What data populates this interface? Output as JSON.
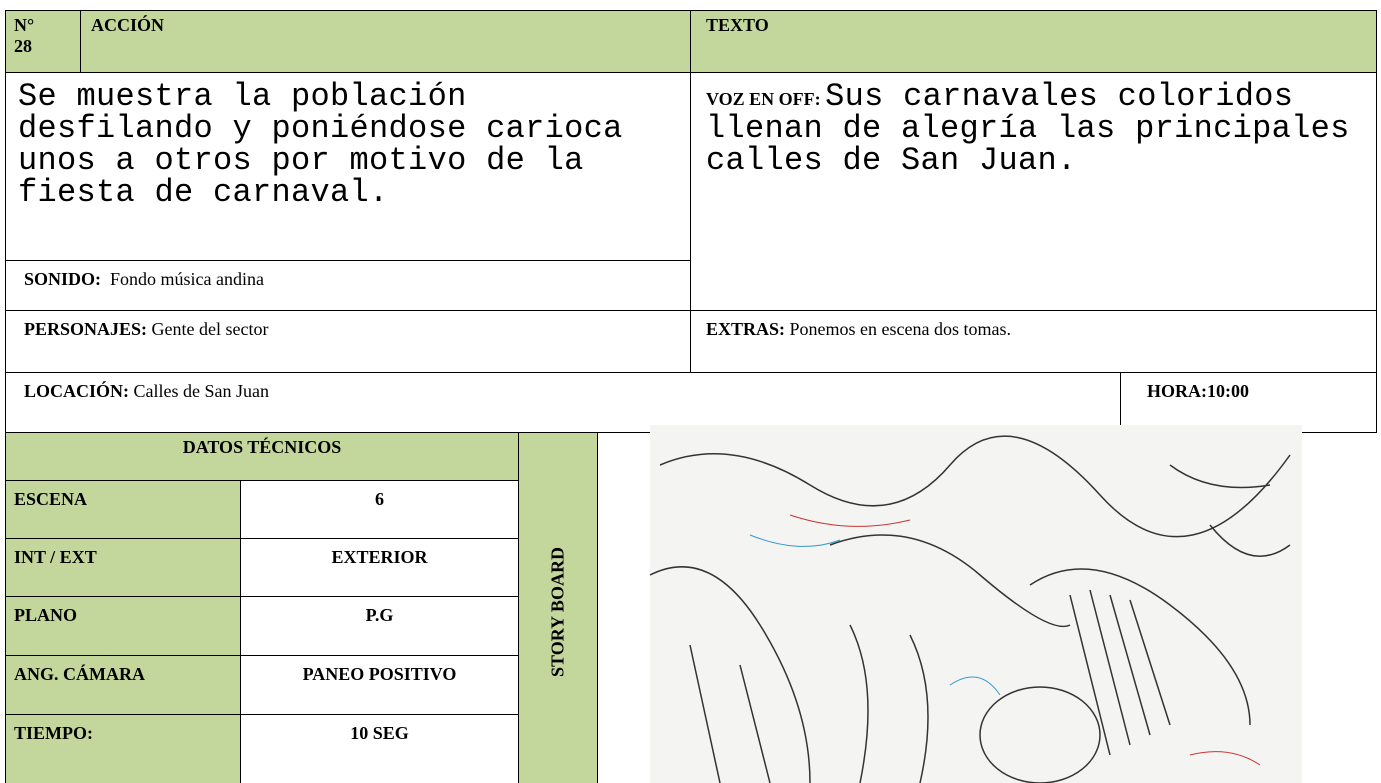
{
  "header": {
    "number_label": "N°",
    "number": "28",
    "action_label": "ACCIÓN",
    "text_label": "TEXTO"
  },
  "action": "Se muestra la población desfilando y poniéndose carioca unos a otros por motivo de la fiesta de carnaval.",
  "voice_over": {
    "label": "VOZ EN OFF:",
    "text": "Sus carnavales coloridos llenan de alegría las principales calles de San Juan."
  },
  "sound": {
    "label": "SONIDO:",
    "text": "Fondo música andina"
  },
  "characters": {
    "label": "PERSONAJES:",
    "text": "Gente del sector"
  },
  "extras": {
    "label": "EXTRAS:",
    "text": "Ponemos en escena dos tomas."
  },
  "location": {
    "label": "LOCACIÓN:",
    "text": "Calles de San Juan"
  },
  "time": {
    "label": "HORA:",
    "value": "10:00"
  },
  "technical": {
    "title": "DATOS TÉCNICOS",
    "rows": [
      [
        "ESCENA",
        "6"
      ],
      [
        "INT / EXT",
        "EXTERIOR"
      ],
      [
        "PLANO",
        "P.G"
      ],
      [
        "ANG. CÁMARA",
        "PANEO POSITIVO"
      ],
      [
        "TIEMPO:",
        "10 SEG"
      ]
    ]
  },
  "storyboard_label": "STORY BOARD"
}
